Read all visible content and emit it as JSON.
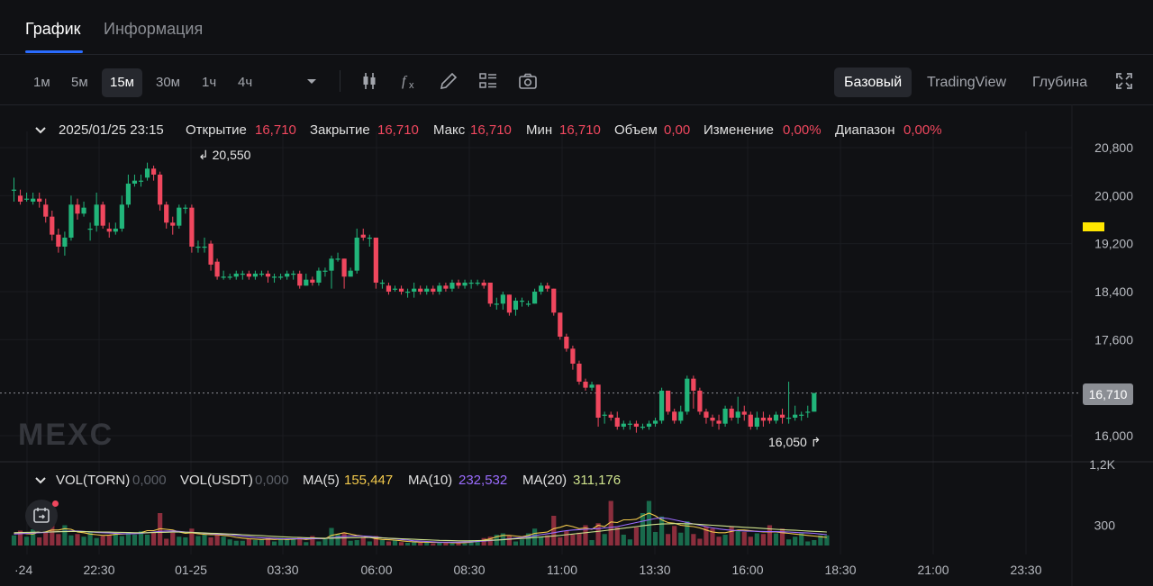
{
  "tabs": {
    "chart": "График",
    "info": "Информация"
  },
  "toolbar": {
    "intervals": [
      "1м",
      "5м",
      "15м",
      "30м",
      "1ч",
      "4ч"
    ],
    "active_interval": "15м",
    "icons": [
      "candlestick-type-icon",
      "indicator-fx-icon",
      "draw-pencil-icon",
      "layout-icon",
      "camera-icon"
    ],
    "views": [
      "Базовый",
      "TradingView",
      "Глубина"
    ],
    "active_view": "Базовый"
  },
  "ohlc": {
    "datetime": "2025/01/25 23:15",
    "open_label": "Открытие",
    "open": "16,710",
    "close_label": "Закрытие",
    "close": "16,710",
    "high_label": "Макс",
    "high": "16,710",
    "low_label": "Мин",
    "low": "16,710",
    "volume_label": "Объем",
    "volume": "0,00",
    "change_label": "Изменение",
    "change": "0,00%",
    "range_label": "Диапазон",
    "range": "0,00%"
  },
  "volume_legend": {
    "vol_torn_label": "VOL(TORN)",
    "vol_torn": "0,000",
    "vol_usdt_label": "VOL(USDT)",
    "vol_usdt": "0,000",
    "ma5_label": "MA(5)",
    "ma5": "155,447",
    "ma10_label": "MA(10)",
    "ma10": "232,532",
    "ma20_label": "MA(20)",
    "ma20": "311,176"
  },
  "watermark": "MEXC",
  "current_price": "16,710",
  "annotations": {
    "high": "20,550",
    "low": "16,050"
  },
  "colors": {
    "up": "#21b57a",
    "down": "#f0475e",
    "accent": "#2a6cff",
    "ma5": "#f2c94c",
    "ma10": "#9b6cff",
    "ma20": "#cfe38d"
  },
  "chart_data": {
    "type": "candlestick",
    "price_axis_ticks": [
      "20,800",
      "20,000",
      "19,200",
      "18,400",
      "17,600",
      "16,000"
    ],
    "price_axis_values": [
      20800,
      20000,
      19200,
      18400,
      17600,
      16000
    ],
    "volume_axis_ticks": [
      "1,2K",
      "300"
    ],
    "volume_axis_values": [
      1200,
      300
    ],
    "time_axis_ticks": [
      "·24",
      "22:30",
      "01-25",
      "03:30",
      "06:00",
      "08:30",
      "11:00",
      "13:30",
      "16:00",
      "18:30",
      "21:00",
      "23:30"
    ],
    "interval_minutes": 15,
    "last_price": 16710,
    "candles": [
      [
        20100,
        20100,
        20300,
        19900
      ],
      [
        20000,
        19900,
        20100,
        19850
      ],
      [
        19950,
        19950,
        20050,
        19900
      ],
      [
        19900,
        19950,
        20050,
        19850
      ],
      [
        19950,
        19900,
        20050,
        19800
      ],
      [
        19850,
        19650,
        19950,
        19550
      ],
      [
        19650,
        19350,
        19750,
        19250
      ],
      [
        19350,
        19150,
        19450,
        19050
      ],
      [
        19150,
        19300,
        19400,
        19000
      ],
      [
        19300,
        19850,
        20000,
        19250
      ],
      [
        19850,
        19700,
        19950,
        19600
      ],
      [
        19700,
        19800,
        19900,
        19650
      ],
      [
        19450,
        19450,
        19550,
        19250
      ],
      [
        19500,
        19850,
        20050,
        19400
      ],
      [
        19850,
        19500,
        19900,
        19450
      ],
      [
        19450,
        19400,
        19550,
        19300
      ],
      [
        19400,
        19450,
        19550,
        19350
      ],
      [
        19450,
        19850,
        20000,
        19400
      ],
      [
        19850,
        20200,
        20350,
        19800
      ],
      [
        20200,
        20250,
        20350,
        20150
      ],
      [
        20250,
        20250,
        20350,
        20150
      ],
      [
        20300,
        20450,
        20550,
        20250
      ],
      [
        20450,
        20350,
        20500,
        20250
      ],
      [
        20350,
        19850,
        20400,
        19750
      ],
      [
        19850,
        19550,
        19900,
        19450
      ],
      [
        19550,
        19500,
        19650,
        19350
      ],
      [
        19500,
        19800,
        19850,
        19450
      ],
      [
        19800,
        19800,
        19850,
        19700
      ],
      [
        19800,
        19150,
        19850,
        19050
      ],
      [
        19150,
        19150,
        19250,
        19050
      ],
      [
        19150,
        19150,
        19300,
        19050
      ],
      [
        19200,
        18850,
        19250,
        18750
      ],
      [
        18900,
        18650,
        18950,
        18600
      ],
      [
        18650,
        18650,
        18750,
        18600
      ],
      [
        18650,
        18650,
        18700,
        18600
      ],
      [
        18650,
        18700,
        18750,
        18600
      ],
      [
        18700,
        18700,
        18750,
        18600
      ],
      [
        18700,
        18650,
        18750,
        18600
      ],
      [
        18650,
        18700,
        18750,
        18600
      ],
      [
        18700,
        18700,
        18750,
        18650
      ],
      [
        18700,
        18650,
        18750,
        18550
      ],
      [
        18650,
        18650,
        18700,
        18550
      ],
      [
        18650,
        18650,
        18700,
        18600
      ],
      [
        18650,
        18700,
        18750,
        18600
      ],
      [
        18700,
        18700,
        18750,
        18600
      ],
      [
        18700,
        18500,
        18750,
        18450
      ],
      [
        18500,
        18600,
        18700,
        18500
      ],
      [
        18600,
        18550,
        18650,
        18500
      ],
      [
        18550,
        18750,
        18800,
        18500
      ],
      [
        18750,
        18750,
        18800,
        18650
      ],
      [
        18750,
        18950,
        19000,
        18450
      ],
      [
        18950,
        18950,
        19050,
        18900
      ],
      [
        18950,
        18650,
        18950,
        18450
      ],
      [
        18650,
        18750,
        18800,
        18650
      ],
      [
        18750,
        19300,
        19450,
        18700
      ],
      [
        19350,
        19300,
        19450,
        19250
      ],
      [
        19300,
        19300,
        19350,
        19150
      ],
      [
        19300,
        18550,
        19300,
        18450
      ],
      [
        18550,
        18550,
        18600,
        18450
      ],
      [
        18500,
        18400,
        18550,
        18350
      ],
      [
        18450,
        18450,
        18500,
        18400
      ],
      [
        18450,
        18400,
        18500,
        18350
      ],
      [
        18400,
        18400,
        18450,
        18300
      ],
      [
        18400,
        18450,
        18550,
        18300
      ],
      [
        18450,
        18400,
        18500,
        18350
      ],
      [
        18400,
        18450,
        18500,
        18350
      ],
      [
        18450,
        18400,
        18500,
        18350
      ],
      [
        18400,
        18500,
        18550,
        18350
      ],
      [
        18500,
        18450,
        18550,
        18400
      ],
      [
        18450,
        18550,
        18600,
        18400
      ],
      [
        18550,
        18500,
        18600,
        18450
      ],
      [
        18500,
        18550,
        18600,
        18450
      ],
      [
        18550,
        18550,
        18600,
        18450
      ],
      [
        18550,
        18550,
        18600,
        18500
      ],
      [
        18550,
        18500,
        18600,
        18450
      ],
      [
        18550,
        18200,
        18550,
        18150
      ],
      [
        18200,
        18200,
        18300,
        18100
      ],
      [
        18200,
        18350,
        18400,
        18100
      ],
      [
        18350,
        18050,
        18350,
        18000
      ],
      [
        18100,
        18250,
        18300,
        18000
      ],
      [
        18250,
        18250,
        18300,
        18150
      ],
      [
        18200,
        18200,
        18250,
        18150
      ],
      [
        18200,
        18400,
        18450,
        18200
      ],
      [
        18400,
        18500,
        18550,
        18350
      ],
      [
        18500,
        18450,
        18550,
        18400
      ],
      [
        18450,
        18050,
        18450,
        18000
      ],
      [
        18050,
        17650,
        18050,
        17600
      ],
      [
        17650,
        17450,
        17700,
        17400
      ],
      [
        17450,
        17200,
        17500,
        17100
      ],
      [
        17200,
        16900,
        17250,
        16850
      ],
      [
        16900,
        16800,
        16950,
        16750
      ],
      [
        16800,
        16850,
        16900,
        16750
      ],
      [
        16850,
        16300,
        16850,
        16150
      ],
      [
        16350,
        16350,
        16400,
        16200
      ],
      [
        16350,
        16300,
        16400,
        16250
      ],
      [
        16300,
        16150,
        16400,
        16100
      ],
      [
        16150,
        16200,
        16250,
        16100
      ],
      [
        16200,
        16200,
        16250,
        16100
      ],
      [
        16200,
        16150,
        16250,
        16050
      ],
      [
        16150,
        16150,
        16200,
        16100
      ],
      [
        16150,
        16200,
        16250,
        16100
      ],
      [
        16200,
        16250,
        16300,
        16150
      ],
      [
        16250,
        16750,
        16800,
        16200
      ],
      [
        16750,
        16400,
        16750,
        16350
      ],
      [
        16400,
        16250,
        16450,
        16200
      ],
      [
        16250,
        16400,
        16500,
        16200
      ],
      [
        16400,
        16950,
        17000,
        16350
      ],
      [
        16950,
        16750,
        17000,
        16450
      ],
      [
        16750,
        16400,
        16800,
        16350
      ],
      [
        16400,
        16300,
        16450,
        16200
      ],
      [
        16300,
        16250,
        16350,
        16150
      ],
      [
        16250,
        16200,
        16350,
        16100
      ],
      [
        16200,
        16450,
        16500,
        16150
      ],
      [
        16450,
        16300,
        16500,
        16250
      ],
      [
        16300,
        16400,
        16650,
        16200
      ],
      [
        16400,
        16350,
        16500,
        16250
      ],
      [
        16350,
        16150,
        16400,
        16100
      ],
      [
        16150,
        16300,
        16400,
        16100
      ],
      [
        16300,
        16250,
        16400,
        16150
      ],
      [
        16300,
        16250,
        16350,
        16200
      ],
      [
        16250,
        16350,
        16400,
        16200
      ],
      [
        16350,
        16300,
        16450,
        16200
      ],
      [
        16300,
        16300,
        16900,
        16200
      ],
      [
        16300,
        16350,
        16500,
        16250
      ],
      [
        16350,
        16350,
        16400,
        16250
      ],
      [
        16400,
        16400,
        16500,
        16300
      ],
      [
        16400,
        16710,
        16710,
        16400
      ]
    ],
    "volumes": [
      150,
      220,
      130,
      240,
      120,
      280,
      330,
      170,
      300,
      150,
      170,
      130,
      200,
      110,
      140,
      160,
      180,
      140,
      200,
      160,
      210,
      160,
      190,
      480,
      100,
      190,
      130,
      120,
      250,
      140,
      160,
      120,
      160,
      130,
      90,
      70,
      70,
      100,
      80,
      90,
      120,
      60,
      110,
      100,
      90,
      120,
      50,
      140,
      60,
      100,
      260,
      170,
      190,
      70,
      80,
      130,
      60,
      140,
      80,
      60,
      80,
      50,
      40,
      60,
      40,
      50,
      30,
      40,
      50,
      30,
      40,
      30,
      80,
      70,
      110,
      130,
      160,
      180,
      140,
      60,
      90,
      180,
      250,
      130,
      150,
      440,
      120,
      220,
      160,
      190,
      300,
      80,
      330,
      170,
      660,
      270,
      160,
      90,
      270,
      480,
      660,
      200,
      430,
      170,
      290,
      190,
      360,
      170,
      100,
      280,
      250,
      130,
      160,
      280,
      230,
      200,
      130,
      180,
      170,
      300,
      180,
      250,
      90,
      130,
      180,
      60,
      80,
      150,
      150
    ],
    "ma5": [
      180,
      190,
      175,
      170,
      200,
      210,
      230,
      230,
      250,
      240,
      200,
      190,
      170,
      160,
      150,
      155,
      165,
      170,
      175,
      180,
      190,
      220,
      220,
      250,
      240,
      230,
      200,
      180,
      190,
      175,
      165,
      160,
      160,
      150,
      140,
      120,
      110,
      100,
      95,
      90,
      95,
      90,
      95,
      90,
      95,
      100,
      90,
      100,
      100,
      100,
      150,
      170,
      190,
      170,
      150,
      140,
      120,
      100,
      90,
      85,
      80,
      70,
      60,
      55,
      50,
      50,
      45,
      45,
      45,
      40,
      40,
      40,
      50,
      60,
      80,
      100,
      130,
      150,
      150,
      140,
      130,
      150,
      180,
      190,
      200,
      250,
      270,
      300,
      280,
      250,
      260,
      240,
      300,
      280,
      350,
      340,
      380,
      380,
      390,
      440,
      480,
      440,
      380,
      340,
      330,
      300,
      290,
      280,
      260,
      230,
      200,
      190,
      190,
      210,
      230,
      230,
      220,
      210,
      200,
      200,
      200,
      190,
      180,
      170,
      160,
      150,
      140,
      130,
      120
    ],
    "ma10": [
      170,
      175,
      180,
      185,
      190,
      195,
      200,
      205,
      210,
      215,
      215,
      210,
      200,
      195,
      190,
      185,
      180,
      175,
      175,
      175,
      180,
      190,
      200,
      210,
      215,
      215,
      210,
      200,
      195,
      190,
      180,
      175,
      170,
      165,
      160,
      150,
      140,
      130,
      120,
      115,
      110,
      105,
      100,
      100,
      100,
      100,
      100,
      100,
      100,
      105,
      115,
      125,
      135,
      140,
      140,
      140,
      135,
      125,
      115,
      105,
      100,
      90,
      80,
      70,
      65,
      60,
      55,
      50,
      50,
      50,
      50,
      52,
      55,
      60,
      65,
      72,
      80,
      90,
      100,
      110,
      120,
      130,
      145,
      160,
      175,
      190,
      205,
      220,
      230,
      235,
      240,
      245,
      250,
      260,
      270,
      280,
      300,
      320,
      340,
      360,
      380,
      400,
      410,
      400,
      380,
      360,
      340,
      320,
      300,
      280,
      260,
      245,
      235,
      225,
      220,
      215,
      212,
      210,
      208,
      206,
      205,
      203,
      200,
      195,
      190,
      185,
      180,
      170,
      160
    ],
    "ma20": [
      190,
      192,
      194,
      196,
      198,
      200,
      202,
      204,
      206,
      208,
      208,
      206,
      204,
      202,
      200,
      198,
      196,
      194,
      192,
      190,
      190,
      190,
      192,
      194,
      196,
      198,
      198,
      196,
      194,
      190,
      186,
      182,
      178,
      174,
      170,
      165,
      160,
      155,
      150,
      145,
      140,
      135,
      130,
      126,
      122,
      118,
      115,
      112,
      110,
      108,
      108,
      110,
      112,
      114,
      116,
      118,
      118,
      116,
      112,
      108,
      104,
      100,
      96,
      92,
      88,
      84,
      80,
      76,
      74,
      72,
      70,
      70,
      70,
      72,
      74,
      78,
      82,
      86,
      92,
      98,
      104,
      110,
      118,
      126,
      134,
      142,
      150,
      160,
      170,
      180,
      190,
      200,
      210,
      220,
      232,
      244,
      256,
      268,
      280,
      292,
      304,
      312,
      318,
      322,
      324,
      324,
      322,
      318,
      312,
      306,
      300,
      294,
      288,
      282,
      276,
      270,
      264,
      258,
      252,
      246,
      240,
      235,
      230,
      225,
      220,
      215,
      210,
      205,
      200
    ]
  }
}
